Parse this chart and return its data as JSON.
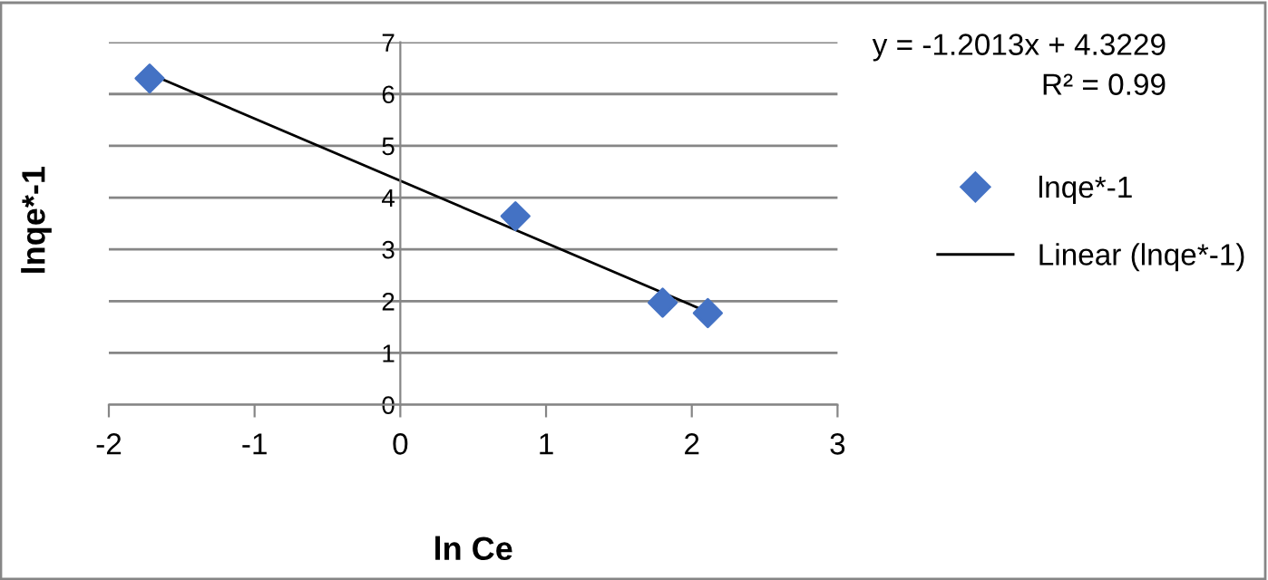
{
  "chart_data": {
    "type": "scatter",
    "xlabel": "ln Ce",
    "ylabel": "lnqe*-1",
    "series": [
      {
        "name": "lnqe*-1",
        "color": "#4472c4",
        "marker": "diamond",
        "x": [
          -1.72,
          0.79,
          1.8,
          2.11
        ],
        "values": [
          6.3,
          3.64,
          1.97,
          1.77
        ]
      },
      {
        "name": "Linear (lnqe*-1)",
        "type": "line",
        "color": "#000000",
        "marker": "none",
        "line_style": "solid",
        "x": [
          -1.72,
          2.11
        ],
        "values": [
          6.39,
          1.79
        ]
      }
    ],
    "annotations": [
      "y = -1.2013x + 4.3229",
      "R² = 0.99"
    ],
    "xlim": [
      -2,
      3
    ],
    "xticks": [
      -2,
      -1,
      0,
      1,
      2,
      3
    ],
    "ylim": [
      0,
      7
    ],
    "yticks": [
      0,
      1,
      2,
      3,
      4,
      5,
      6,
      7
    ],
    "grid": "y",
    "legend": "right"
  }
}
